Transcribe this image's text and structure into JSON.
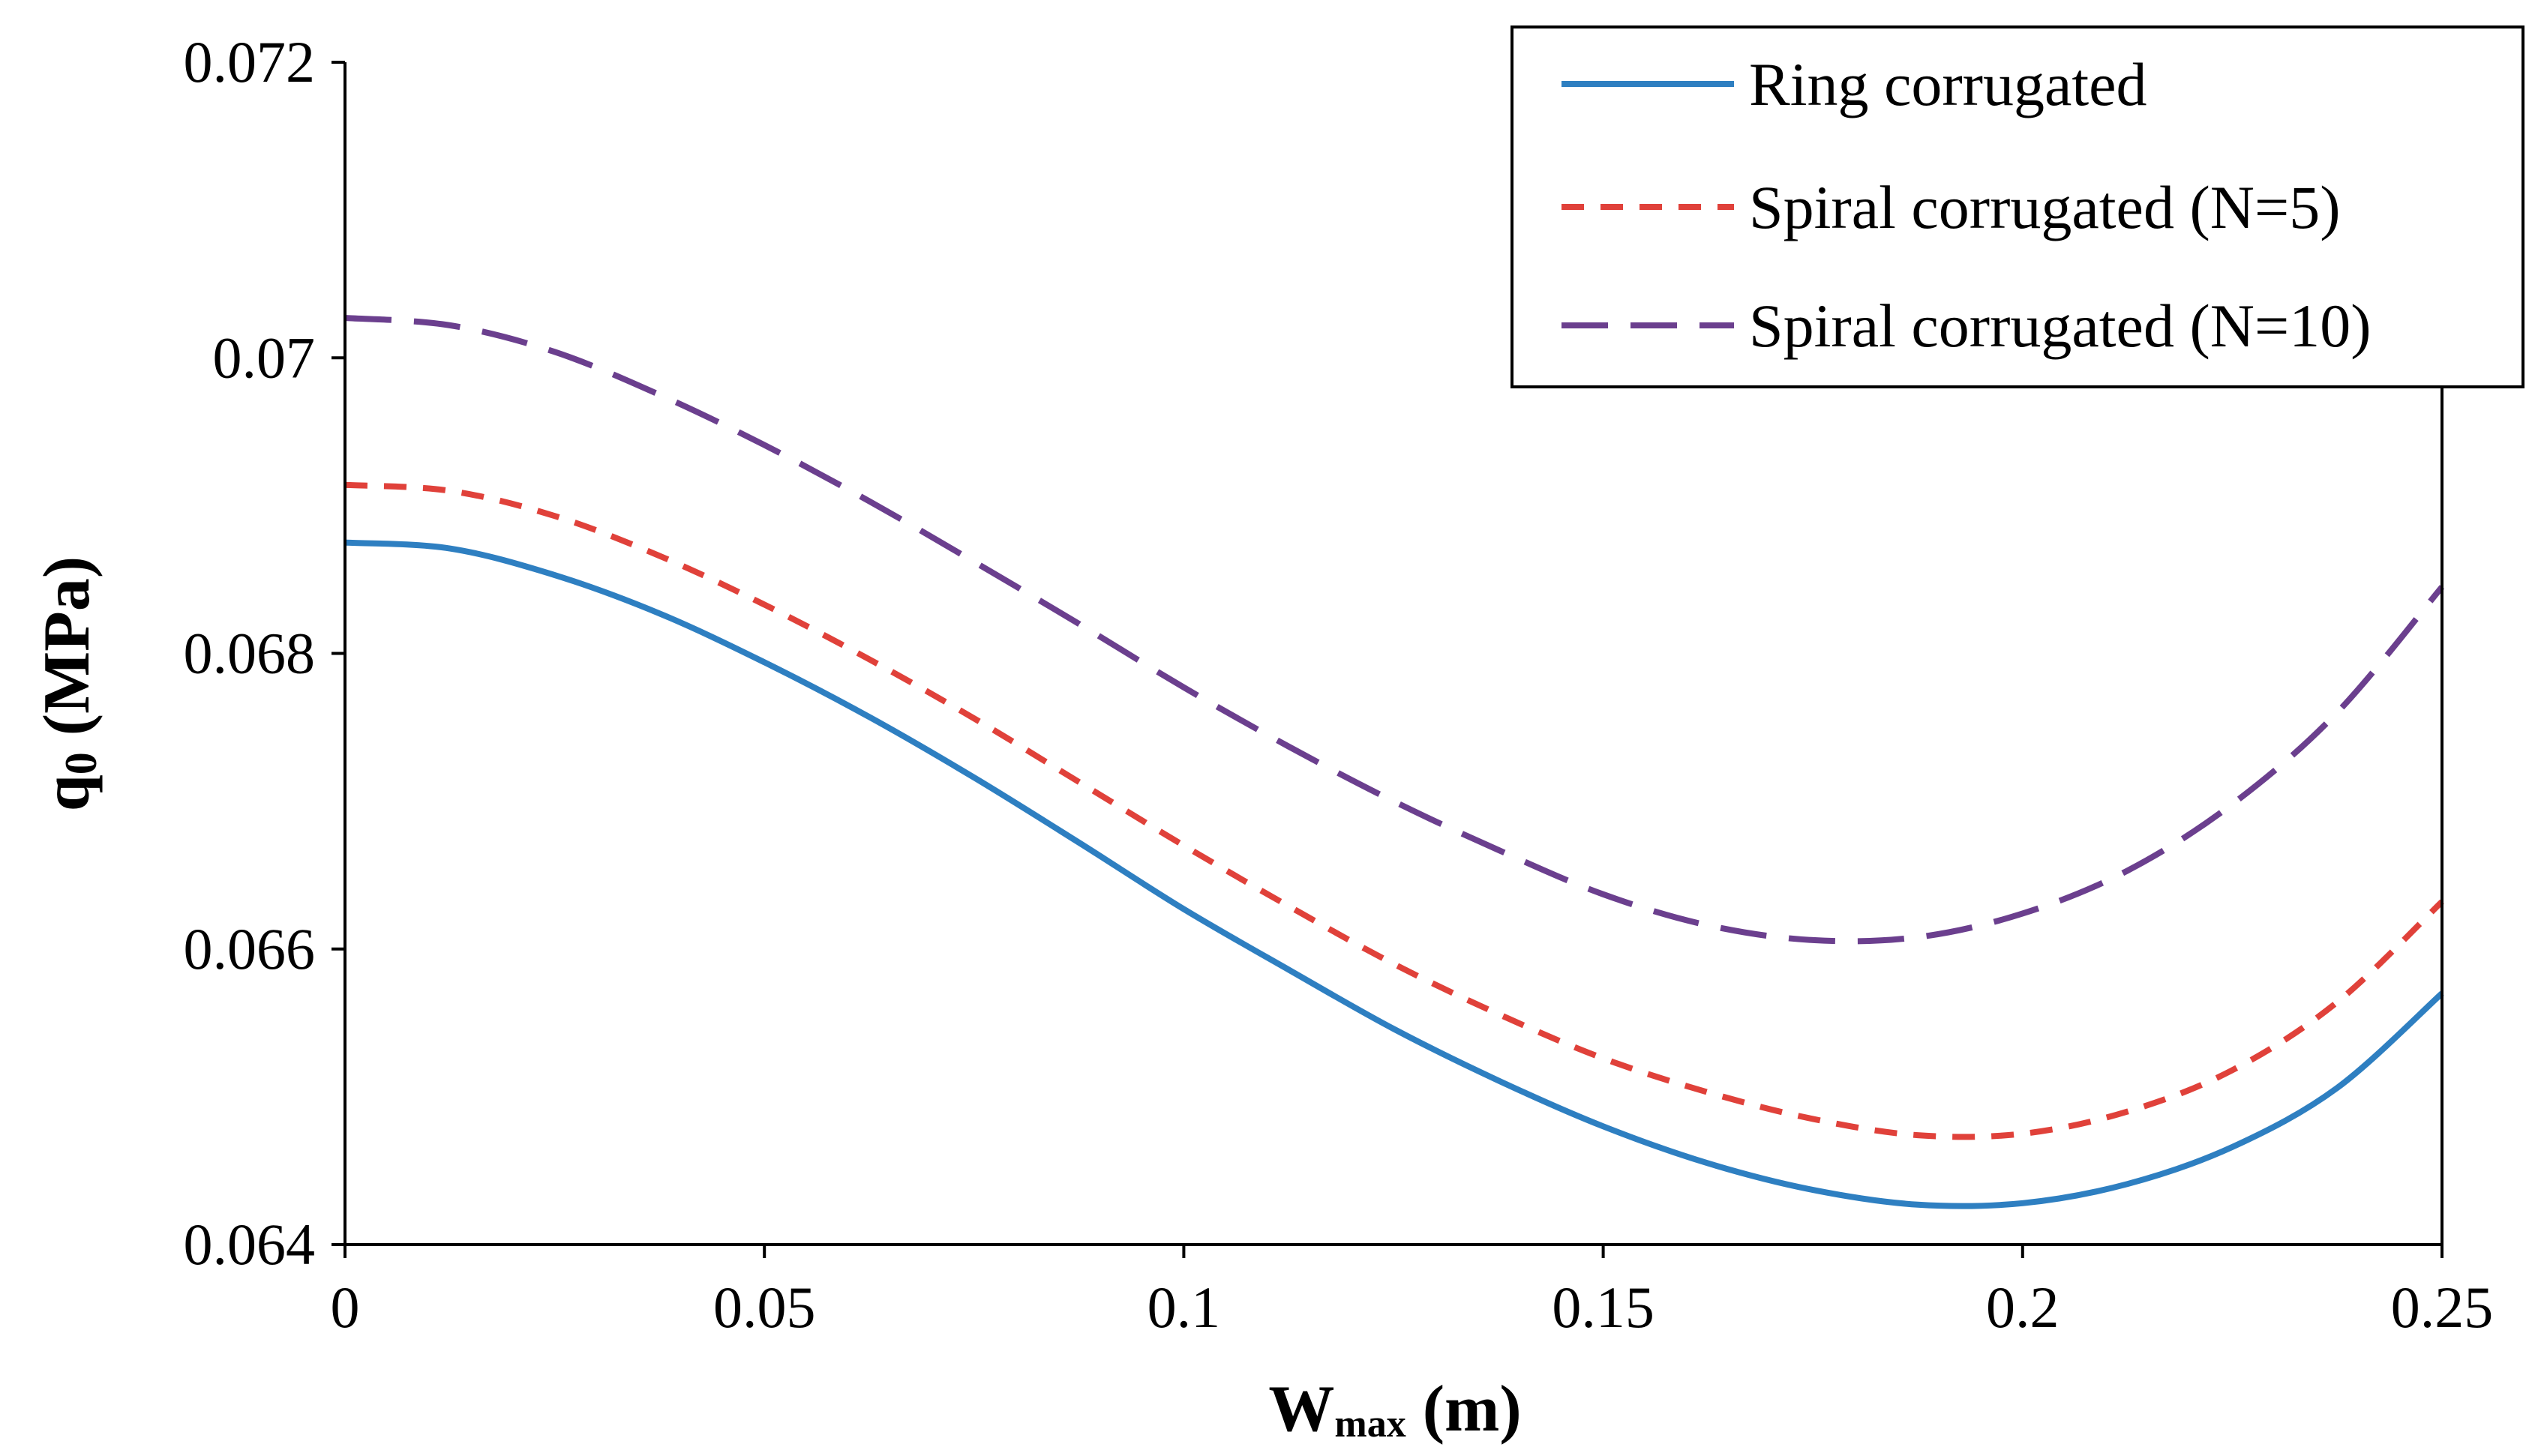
{
  "chart_data": {
    "type": "line",
    "title": "",
    "xlabel": "W",
    "xlabel_sub": "max",
    "xlabel_unit": " (m)",
    "ylabel": "q",
    "ylabel_sub": "0",
    "ylabel_unit": " (MPa)",
    "xlim": [
      0,
      0.25
    ],
    "ylim": [
      0.064,
      0.072
    ],
    "xticks": [
      {
        "value": 0,
        "label": "0"
      },
      {
        "value": 0.05,
        "label": "0.05"
      },
      {
        "value": 0.1,
        "label": "0.1"
      },
      {
        "value": 0.15,
        "label": "0.15"
      },
      {
        "value": 0.2,
        "label": "0.2"
      },
      {
        "value": 0.25,
        "label": "0.25"
      }
    ],
    "yticks": [
      {
        "value": 0.064,
        "label": "0.064"
      },
      {
        "value": 0.066,
        "label": "0.066"
      },
      {
        "value": 0.068,
        "label": "0.068"
      },
      {
        "value": 0.07,
        "label": "0.07"
      },
      {
        "value": 0.072,
        "label": "0.072"
      }
    ],
    "grid": false,
    "legend_position": "top-right",
    "series": [
      {
        "name": "Ring corrugated",
        "color": "#2E7FC1",
        "dash": "solid",
        "x": [
          0,
          0.0125,
          0.025,
          0.0375,
          0.05,
          0.0625,
          0.075,
          0.0875,
          0.1,
          0.1125,
          0.125,
          0.1375,
          0.15,
          0.1625,
          0.175,
          0.1875,
          0.2,
          0.2125,
          0.225,
          0.2375,
          0.25
        ],
        "y": [
          0.06875,
          0.06871,
          0.06853,
          0.06827,
          0.06794,
          0.06757,
          0.06716,
          0.06672,
          0.06627,
          0.06586,
          0.06546,
          0.06511,
          0.0648,
          0.06455,
          0.06437,
          0.06427,
          0.06428,
          0.06441,
          0.06466,
          0.06506,
          0.0657
        ]
      },
      {
        "name": "Spiral corrugated (N=5)",
        "color": "#E0413A",
        "dash": "short-dash",
        "x": [
          0,
          0.0125,
          0.025,
          0.0375,
          0.05,
          0.0625,
          0.075,
          0.0875,
          0.1,
          0.1125,
          0.125,
          0.1375,
          0.15,
          0.1625,
          0.175,
          0.1875,
          0.2,
          0.2125,
          0.225,
          0.2375,
          0.25
        ],
        "y": [
          0.06914,
          0.0691,
          0.06893,
          0.06866,
          0.06833,
          0.06796,
          0.06756,
          0.06713,
          0.0667,
          0.06629,
          0.0659,
          0.06556,
          0.06526,
          0.06503,
          0.06485,
          0.06474,
          0.06475,
          0.0649,
          0.06518,
          0.06564,
          0.06632
        ]
      },
      {
        "name": "Spiral corrugated (N=10)",
        "color": "#6B3F8E",
        "dash": "long-dash",
        "x": [
          0,
          0.0125,
          0.025,
          0.0375,
          0.05,
          0.0625,
          0.075,
          0.0875,
          0.1,
          0.1125,
          0.125,
          0.1375,
          0.15,
          0.1625,
          0.175,
          0.1875,
          0.2,
          0.2125,
          0.225,
          0.2375,
          0.25
        ],
        "y": [
          0.07027,
          0.07022,
          0.07004,
          0.06975,
          0.06941,
          0.06903,
          0.06862,
          0.0682,
          0.06777,
          0.06737,
          0.067,
          0.06667,
          0.06637,
          0.06616,
          0.06606,
          0.06608,
          0.06624,
          0.06653,
          0.06698,
          0.0676,
          0.06845
        ]
      }
    ]
  }
}
